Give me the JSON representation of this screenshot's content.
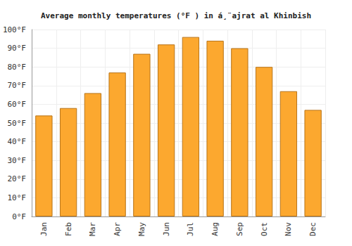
{
  "chart_data": {
    "type": "bar",
    "title": "Average monthly temperatures (°F ) in á¸¨ajrat al Khinbish",
    "categories": [
      "Jan",
      "Feb",
      "Mar",
      "Apr",
      "May",
      "Jun",
      "Jul",
      "Aug",
      "Sep",
      "Oct",
      "Nov",
      "Dec"
    ],
    "values": [
      54,
      58,
      66,
      77,
      87,
      92,
      96,
      94,
      90,
      80,
      67,
      57
    ],
    "color": "#fca82f",
    "ylim": [
      0,
      100
    ],
    "yticks": [
      {
        "value": 0,
        "label": "0°F"
      },
      {
        "value": 10,
        "label": "10°F"
      },
      {
        "value": 20,
        "label": "20°F"
      },
      {
        "value": 30,
        "label": "30°F"
      },
      {
        "value": 40,
        "label": "40°F"
      },
      {
        "value": 50,
        "label": "50°F"
      },
      {
        "value": 60,
        "label": "60°F"
      },
      {
        "value": 70,
        "label": "70°F"
      },
      {
        "value": 80,
        "label": "80°F"
      },
      {
        "value": 90,
        "label": "90°F"
      },
      {
        "value": 100,
        "label": "100°F"
      }
    ],
    "grid": true
  }
}
